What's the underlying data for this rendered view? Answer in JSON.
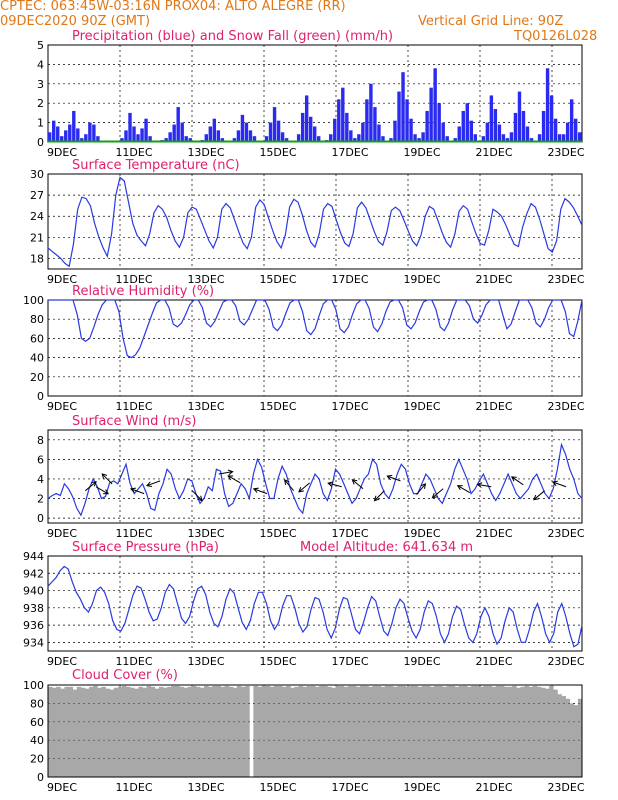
{
  "header": {
    "line1_left": "CPTEC:  063:45W-03:16N  PROX04: ALTO ALEGRE (RR)",
    "line2_left": "09DEC2020 90Z (GMT)",
    "line2_right": "Vertical Grid Line: 90Z",
    "line3_right": "TQ0126L028"
  },
  "chart_data": [
    {
      "type": "bar",
      "title": "Precipitation (blue) and Snow Fall (green) (mm/h)",
      "x_ticks": [
        "9DEC",
        "11DEC",
        "13DEC",
        "15DEC",
        "17DEC",
        "19DEC",
        "21DEC",
        "23DEC"
      ],
      "y_ticks": [
        0,
        1,
        2,
        3,
        4,
        5
      ],
      "ylim": [
        0,
        5
      ],
      "series": [
        {
          "color": "#2a2af0",
          "values": [
            0.5,
            1.1,
            0.8,
            0.3,
            0.6,
            0.9,
            1.6,
            0.7,
            0.2,
            0.4,
            1.0,
            0.9,
            0.3,
            0.0,
            0.0,
            0.0,
            0.0,
            0.0,
            0.2,
            0.6,
            1.5,
            0.8,
            0.4,
            0.7,
            1.2,
            0.3,
            0.0,
            0.0,
            0.1,
            0.2,
            0.5,
            0.9,
            1.8,
            1.0,
            0.3,
            0.2,
            0.0,
            0.0,
            0.1,
            0.4,
            0.8,
            1.2,
            0.6,
            0.2,
            0.0,
            0.0,
            0.2,
            0.6,
            1.4,
            1.0,
            0.6,
            0.3,
            0.0,
            0.0,
            0.3,
            1.0,
            1.8,
            1.1,
            0.5,
            0.2,
            0.0,
            0.0,
            0.4,
            1.5,
            2.4,
            1.3,
            0.8,
            0.3,
            0.0,
            0.1,
            0.4,
            1.2,
            2.2,
            2.8,
            1.5,
            0.6,
            0.2,
            0.4,
            1.0,
            2.2,
            3.0,
            1.8,
            0.9,
            0.3,
            0.0,
            0.2,
            1.1,
            2.6,
            3.6,
            2.2,
            1.2,
            0.4,
            0.2,
            0.5,
            1.6,
            2.8,
            3.8,
            2.0,
            1.0,
            0.3,
            0.0,
            0.2,
            0.8,
            1.6,
            2.0,
            1.1,
            0.4,
            0.0,
            0.3,
            1.0,
            2.4,
            1.7,
            0.9,
            0.4,
            0.2,
            0.5,
            1.5,
            2.6,
            1.6,
            0.8,
            0.2,
            0.0,
            0.4,
            1.6,
            3.8,
            2.4,
            1.2,
            0.4,
            0.4,
            1.0,
            2.2,
            1.2,
            0.5
          ]
        },
        {
          "color": "#14a014",
          "values": [
            0
          ]
        }
      ]
    },
    {
      "type": "line",
      "title": "Surface Temperature (nC)",
      "x_ticks": [
        "9DEC",
        "11DEC",
        "13DEC",
        "15DEC",
        "17DEC",
        "19DEC",
        "21DEC",
        "23DEC"
      ],
      "y_ticks": [
        18,
        21,
        24,
        27,
        30
      ],
      "ylim": [
        16.5,
        30
      ],
      "values": [
        19.5,
        19.0,
        18.5,
        18.0,
        17.3,
        16.9,
        20.0,
        25.0,
        26.7,
        26.5,
        25.5,
        23.0,
        21.0,
        19.5,
        18.3,
        21.5,
        27.0,
        29.5,
        29.0,
        26.0,
        23.0,
        21.3,
        20.5,
        19.8,
        21.5,
        24.5,
        25.5,
        25.0,
        23.8,
        22.0,
        20.5,
        19.6,
        21.0,
        24.5,
        25.3,
        25.0,
        23.5,
        22.0,
        20.5,
        19.5,
        21.0,
        25.0,
        25.8,
        25.2,
        23.5,
        21.8,
        20.2,
        19.4,
        21.0,
        25.3,
        26.3,
        25.7,
        23.8,
        22.0,
        20.4,
        19.5,
        21.3,
        25.3,
        26.4,
        26.0,
        24.2,
        22.0,
        20.3,
        19.6,
        21.5,
        25.0,
        25.8,
        25.4,
        23.5,
        21.7,
        20.2,
        19.7,
        21.5,
        25.2,
        26.0,
        25.2,
        23.5,
        21.8,
        20.4,
        19.9,
        21.8,
        24.8,
        25.3,
        24.8,
        23.4,
        21.9,
        20.5,
        19.8,
        21.3,
        24.0,
        25.4,
        25.0,
        23.4,
        21.7,
        20.3,
        19.6,
        21.5,
        24.7,
        25.5,
        25.0,
        23.2,
        21.5,
        20.1,
        19.9,
        22.0,
        25.0,
        24.6,
        24.0,
        22.8,
        21.3,
        20.0,
        19.7,
        22.5,
        24.4,
        25.8,
        25.3,
        23.6,
        21.5,
        19.4,
        18.9,
        20.5,
        25.0,
        26.5,
        26.0,
        25.2,
        24.0,
        22.7
      ]
    },
    {
      "type": "line",
      "title": "Relative Humidity (%)",
      "x_ticks": [
        "9DEC",
        "11DEC",
        "13DEC",
        "15DEC",
        "17DEC",
        "19DEC",
        "21DEC",
        "23DEC"
      ],
      "y_ticks": [
        0,
        20,
        40,
        60,
        80,
        100
      ],
      "ylim": [
        0,
        100
      ],
      "values": [
        100,
        100,
        100,
        100,
        100,
        100,
        100,
        85,
        60,
        57,
        60,
        72,
        85,
        95,
        100,
        100,
        100,
        88,
        60,
        42,
        40,
        43,
        50,
        62,
        74,
        86,
        97,
        100,
        100,
        92,
        75,
        72,
        76,
        85,
        95,
        100,
        100,
        92,
        76,
        72,
        78,
        88,
        98,
        100,
        100,
        94,
        78,
        74,
        80,
        90,
        100,
        100,
        100,
        90,
        72,
        68,
        74,
        86,
        97,
        100,
        100,
        88,
        68,
        64,
        70,
        84,
        96,
        100,
        100,
        90,
        70,
        66,
        72,
        85,
        96,
        100,
        100,
        91,
        72,
        67,
        75,
        88,
        98,
        100,
        100,
        92,
        74,
        70,
        76,
        88,
        98,
        100,
        100,
        90,
        72,
        68,
        76,
        90,
        100,
        100,
        100,
        94,
        80,
        76,
        84,
        95,
        100,
        100,
        100,
        85,
        70,
        75,
        88,
        100,
        100,
        100,
        92,
        76,
        72,
        80,
        92,
        100,
        100,
        100,
        88,
        65,
        62,
        78,
        100
      ]
    },
    {
      "type": "line",
      "title": "Surface Wind (m/s)",
      "x_ticks": [
        "9DEC",
        "11DEC",
        "13DEC",
        "15DEC",
        "17DEC",
        "19DEC",
        "21DEC",
        "23DEC"
      ],
      "y_ticks": [
        0,
        2,
        4,
        6,
        8
      ],
      "ylim": [
        -0.5,
        9
      ],
      "values": [
        2.0,
        2.3,
        2.5,
        2.3,
        3.5,
        3.0,
        2.2,
        1.0,
        0.3,
        1.5,
        3.0,
        4.0,
        3.2,
        2.0,
        2.2,
        3.6,
        3.8,
        3.5,
        4.5,
        5.5,
        3.5,
        2.5,
        3.0,
        3.5,
        2.5,
        1.0,
        0.8,
        2.5,
        3.5,
        5.0,
        4.5,
        3.0,
        2.0,
        2.8,
        4.0,
        3.8,
        2.5,
        1.5,
        2.0,
        3.2,
        2.8,
        5.0,
        4.8,
        2.5,
        1.2,
        1.5,
        2.5,
        3.5,
        3.0,
        2.0,
        4.5,
        6.0,
        5.2,
        3.5,
        2.0,
        2.0,
        4.0,
        5.3,
        4.5,
        3.0,
        2.0,
        1.0,
        0.5,
        2.5,
        3.5,
        4.5,
        4.0,
        2.5,
        1.8,
        3.0,
        5.0,
        4.5,
        3.5,
        2.5,
        1.5,
        2.0,
        3.0,
        4.0,
        4.5,
        6.0,
        5.5,
        3.5,
        2.5,
        2.0,
        3.0,
        4.5,
        5.5,
        5.0,
        3.5,
        2.5,
        2.5,
        3.5,
        4.5,
        4.0,
        3.0,
        2.0,
        1.5,
        2.5,
        3.5,
        5.0,
        6.0,
        5.0,
        4.0,
        2.5,
        3.0,
        3.8,
        4.5,
        3.5,
        2.5,
        1.8,
        2.5,
        3.5,
        4.5,
        3.5,
        2.5,
        2.0,
        2.5,
        3.0,
        4.0,
        4.5,
        3.5,
        2.5,
        2.0,
        3.0,
        5.0,
        7.5,
        6.5,
        5.0,
        4.0,
        2.5,
        2.0
      ],
      "arrows": [
        {
          "t": 0.07,
          "y": 2.8,
          "dir": 40
        },
        {
          "t": 0.09,
          "y": 3.2,
          "dir": -30
        },
        {
          "t": 0.12,
          "y": 3.5,
          "dir": 135
        },
        {
          "t": 0.18,
          "y": 2.5,
          "dir": 160
        },
        {
          "t": 0.21,
          "y": 3.8,
          "dir": -160
        },
        {
          "t": 0.27,
          "y": 2.8,
          "dir": -45
        },
        {
          "t": 0.32,
          "y": 4.5,
          "dir": 10
        },
        {
          "t": 0.36,
          "y": 3.6,
          "dir": 150
        },
        {
          "t": 0.41,
          "y": 2.5,
          "dir": 160
        },
        {
          "t": 0.46,
          "y": 2.8,
          "dir": 130
        },
        {
          "t": 0.49,
          "y": 3.6,
          "dir": -140
        },
        {
          "t": 0.55,
          "y": 3.2,
          "dir": 165
        },
        {
          "t": 0.59,
          "y": 3.0,
          "dir": 140
        },
        {
          "t": 0.63,
          "y": 2.8,
          "dir": -135
        },
        {
          "t": 0.66,
          "y": 3.8,
          "dir": 160
        },
        {
          "t": 0.69,
          "y": 2.4,
          "dir": 50
        },
        {
          "t": 0.74,
          "y": 3.0,
          "dir": -140
        },
        {
          "t": 0.79,
          "y": 2.6,
          "dir": 150
        },
        {
          "t": 0.83,
          "y": 3.2,
          "dir": 170
        },
        {
          "t": 0.89,
          "y": 3.4,
          "dir": 145
        },
        {
          "t": 0.93,
          "y": 2.8,
          "dir": -140
        },
        {
          "t": 0.97,
          "y": 3.2,
          "dir": 160
        }
      ]
    },
    {
      "type": "line",
      "title": "Surface Pressure (hPa)",
      "annotation": "Model Altitude: 641.634 m",
      "x_ticks": [
        "9DEC",
        "11DEC",
        "13DEC",
        "15DEC",
        "17DEC",
        "19DEC",
        "21DEC",
        "23DEC"
      ],
      "y_ticks": [
        934,
        936,
        938,
        940,
        942,
        944
      ],
      "ylim": [
        933,
        944
      ],
      "values": [
        940.5,
        941.0,
        941.5,
        942.3,
        942.8,
        942.5,
        941.0,
        939.8,
        939.0,
        938.0,
        937.5,
        938.5,
        940.0,
        940.4,
        939.8,
        938.5,
        936.5,
        935.5,
        935.3,
        936.2,
        937.8,
        939.5,
        940.5,
        940.3,
        939.0,
        937.5,
        936.5,
        936.7,
        938.0,
        939.8,
        940.7,
        940.2,
        938.5,
        936.8,
        936.2,
        937.0,
        938.8,
        940.2,
        940.5,
        939.5,
        937.5,
        936.2,
        935.8,
        937.0,
        939.0,
        940.2,
        939.7,
        938.0,
        936.3,
        935.5,
        936.5,
        938.5,
        939.8,
        939.8,
        938.5,
        936.5,
        935.5,
        936.3,
        938.2,
        939.4,
        939.4,
        938.0,
        936.2,
        935.2,
        935.8,
        937.8,
        939.2,
        939.0,
        937.5,
        935.5,
        934.5,
        935.6,
        937.8,
        939.2,
        939.0,
        937.3,
        935.5,
        935.0,
        936.3,
        938.0,
        939.3,
        938.8,
        937.0,
        935.3,
        934.8,
        936.2,
        938.0,
        939.0,
        938.5,
        936.8,
        935.3,
        934.5,
        935.5,
        937.5,
        938.8,
        938.5,
        937.0,
        935.0,
        934.0,
        935.0,
        937.0,
        938.2,
        937.8,
        936.0,
        934.5,
        934.0,
        935.0,
        937.0,
        938.0,
        937.0,
        935.0,
        933.8,
        934.5,
        936.5,
        938.0,
        937.5,
        935.5,
        934.0,
        934.0,
        935.5,
        937.5,
        938.5,
        937.0,
        935.0,
        934.0,
        935.0,
        937.5,
        938.5,
        937.0,
        935.0,
        933.5,
        933.8,
        936.0
      ]
    },
    {
      "type": "area",
      "title": "Cloud Cover (%)",
      "x_ticks": [
        "9DEC",
        "11DEC",
        "13DEC",
        "15DEC",
        "17DEC",
        "19DEC",
        "21DEC",
        "23DEC"
      ],
      "y_ticks": [
        0,
        20,
        40,
        60,
        80,
        100
      ],
      "ylim": [
        0,
        100
      ],
      "color": "#a8a8a8",
      "values": [
        98,
        97,
        98,
        96,
        98,
        98,
        95,
        98,
        97,
        96,
        98,
        99,
        97,
        98,
        96,
        95,
        97,
        98,
        99,
        98,
        97,
        96,
        98,
        97,
        99,
        98,
        96,
        98,
        97,
        98,
        99,
        99,
        98,
        97,
        98,
        99,
        98,
        97,
        99,
        98,
        99,
        99,
        98,
        99,
        98,
        97,
        99,
        98,
        99,
        0,
        99,
        98,
        99,
        99,
        98,
        99,
        99,
        98,
        99,
        97,
        98,
        99,
        98,
        99,
        99,
        98,
        99,
        99,
        98,
        97,
        99,
        99,
        98,
        99,
        99,
        98,
        99,
        99,
        98,
        99,
        99,
        98,
        99,
        99,
        98,
        99,
        99,
        98,
        99,
        99,
        98,
        99,
        99,
        98,
        99,
        99,
        98,
        99,
        99,
        98,
        99,
        99,
        98,
        99,
        99,
        98,
        99,
        99,
        98,
        99,
        99,
        98,
        98,
        99,
        97,
        98,
        99,
        98,
        99,
        98,
        97,
        96,
        99,
        95,
        90,
        88,
        85,
        80,
        78,
        85
      ]
    }
  ]
}
